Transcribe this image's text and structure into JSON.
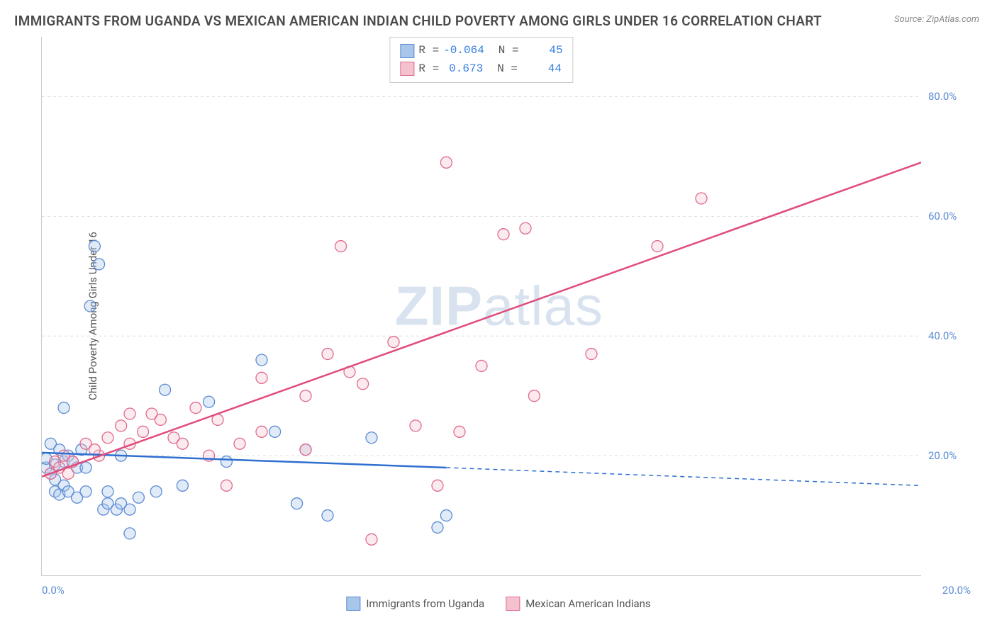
{
  "title": "IMMIGRANTS FROM UGANDA VS MEXICAN AMERICAN INDIAN CHILD POVERTY AMONG GIRLS UNDER 16 CORRELATION CHART",
  "source_text": "Source: ZipAtlas.com",
  "y_axis_label": "Child Poverty Among Girls Under 16",
  "watermark_a": "ZIP",
  "watermark_b": "atlas",
  "chart": {
    "type": "scatter",
    "background_color": "#ffffff",
    "grid_color": "#dddddd",
    "grid_dash": "4,4",
    "axis_color": "#cccccc",
    "tick_label_color": "#5b8bd4",
    "xlim": [
      0,
      20
    ],
    "ylim": [
      0,
      90
    ],
    "y_ticks": [
      20,
      40,
      60,
      80
    ],
    "y_tick_labels": [
      "20.0%",
      "40.0%",
      "60.0%",
      "80.0%"
    ],
    "x_tick_left": "0.0%",
    "x_tick_right": "20.0%",
    "marker_radius": 8,
    "marker_stroke_width": 1.3,
    "marker_fill_opacity": 0.35,
    "series": [
      {
        "name": "Immigrants from Uganda",
        "color_fill": "#a8c5ea",
        "color_stroke": "#5b8bd4",
        "line_color": "#2f6fd0",
        "points": [
          [
            0.1,
            18
          ],
          [
            0.1,
            19.5
          ],
          [
            0.2,
            17
          ],
          [
            0.2,
            22
          ],
          [
            0.3,
            16
          ],
          [
            0.3,
            18.5
          ],
          [
            0.3,
            14
          ],
          [
            0.4,
            21
          ],
          [
            0.4,
            13.5
          ],
          [
            0.5,
            28
          ],
          [
            0.5,
            19
          ],
          [
            0.5,
            15
          ],
          [
            0.6,
            20
          ],
          [
            0.6,
            14
          ],
          [
            0.7,
            19
          ],
          [
            0.8,
            13
          ],
          [
            0.8,
            18
          ],
          [
            0.9,
            21
          ],
          [
            1.0,
            14
          ],
          [
            1.0,
            18
          ],
          [
            1.1,
            45
          ],
          [
            1.2,
            55
          ],
          [
            1.3,
            52
          ],
          [
            1.4,
            11
          ],
          [
            1.5,
            12
          ],
          [
            1.5,
            14
          ],
          [
            1.7,
            11
          ],
          [
            1.8,
            12
          ],
          [
            1.8,
            20
          ],
          [
            2.0,
            11
          ],
          [
            2.0,
            7
          ],
          [
            2.2,
            13
          ],
          [
            2.6,
            14
          ],
          [
            2.8,
            31
          ],
          [
            3.2,
            15
          ],
          [
            3.8,
            29
          ],
          [
            4.2,
            19
          ],
          [
            5.0,
            36
          ],
          [
            5.3,
            24
          ],
          [
            5.8,
            12
          ],
          [
            6.0,
            21
          ],
          [
            6.5,
            10
          ],
          [
            7.5,
            23
          ],
          [
            9.0,
            8
          ],
          [
            9.2,
            10
          ]
        ],
        "trend": {
          "x1": 0,
          "y1": 20.5,
          "x2": 9.2,
          "y2": 18.0,
          "x2_dashed": 20,
          "y2_dashed": 15.0,
          "width": 2.5
        }
      },
      {
        "name": "Mexican American Indians",
        "color_fill": "#f4c2cf",
        "color_stroke": "#e06a8c",
        "line_color": "#e04b7b",
        "points": [
          [
            0.2,
            17
          ],
          [
            0.3,
            19
          ],
          [
            0.4,
            18
          ],
          [
            0.5,
            20
          ],
          [
            0.6,
            17
          ],
          [
            0.7,
            19
          ],
          [
            1.0,
            22
          ],
          [
            1.3,
            20
          ],
          [
            1.5,
            23
          ],
          [
            1.8,
            25
          ],
          [
            2.0,
            27
          ],
          [
            2.0,
            22
          ],
          [
            2.3,
            24
          ],
          [
            2.5,
            27
          ],
          [
            2.7,
            26
          ],
          [
            3.0,
            23
          ],
          [
            3.2,
            22
          ],
          [
            3.5,
            28
          ],
          [
            4.0,
            26
          ],
          [
            4.2,
            15
          ],
          [
            4.5,
            22
          ],
          [
            5.0,
            24
          ],
          [
            5.0,
            33
          ],
          [
            6.0,
            30
          ],
          [
            6.5,
            37
          ],
          [
            6.8,
            55
          ],
          [
            7.0,
            34
          ],
          [
            7.3,
            32
          ],
          [
            7.5,
            6
          ],
          [
            8.0,
            39
          ],
          [
            8.5,
            25
          ],
          [
            9.0,
            15
          ],
          [
            9.2,
            69
          ],
          [
            9.5,
            24
          ],
          [
            10.0,
            35
          ],
          [
            10.5,
            57
          ],
          [
            11.0,
            58
          ],
          [
            11.2,
            30
          ],
          [
            12.5,
            37
          ],
          [
            14.0,
            55
          ],
          [
            15.0,
            63
          ],
          [
            6.0,
            21
          ],
          [
            3.8,
            20
          ],
          [
            1.2,
            21
          ]
        ],
        "trend": {
          "x1": 0,
          "y1": 16.5,
          "x2": 20,
          "y2": 69,
          "width": 2.5
        }
      }
    ]
  },
  "legend_top": {
    "rows": [
      {
        "swatch_fill": "#a8c5ea",
        "swatch_stroke": "#5b8bd4",
        "r_label": "R =",
        "r_value": "-0.064",
        "n_label": "N =",
        "n_value": "45"
      },
      {
        "swatch_fill": "#f4c2cf",
        "swatch_stroke": "#e06a8c",
        "r_label": "R =",
        "r_value": " 0.673",
        "n_label": "N =",
        "n_value": "44"
      }
    ]
  },
  "legend_bottom": {
    "items": [
      {
        "swatch_fill": "#a8c5ea",
        "swatch_stroke": "#5b8bd4",
        "label": "Immigrants from Uganda"
      },
      {
        "swatch_fill": "#f4c2cf",
        "swatch_stroke": "#e06a8c",
        "label": "Mexican American Indians"
      }
    ]
  }
}
